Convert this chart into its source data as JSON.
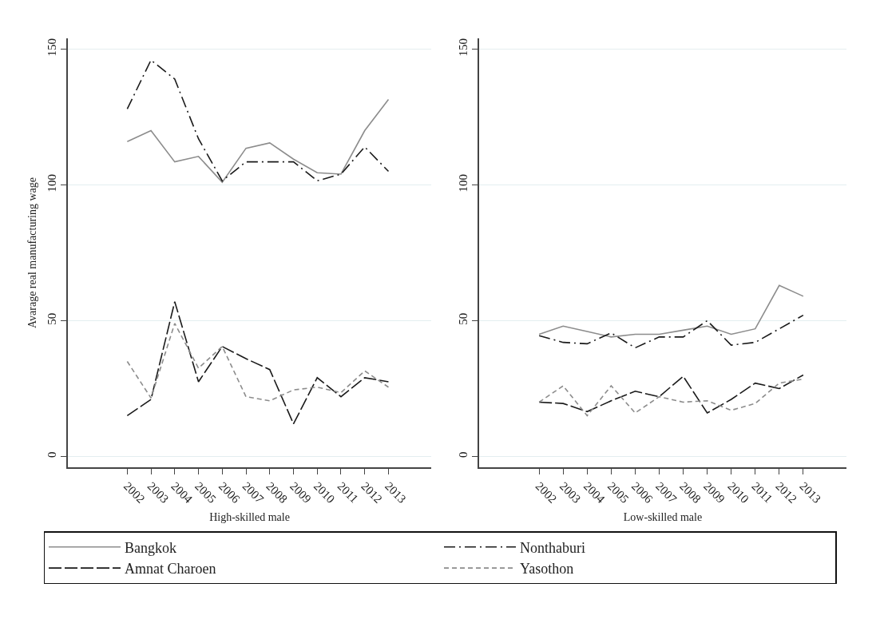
{
  "chart_data": [
    {
      "type": "line",
      "xlabel": "High-skilled male",
      "ylabel": "Avarage real manufacturing wage",
      "x": [
        2002,
        2003,
        2004,
        2005,
        2006,
        2007,
        2008,
        2009,
        2010,
        2011,
        2012,
        2013
      ],
      "xlim": [
        1999.5,
        2014.8
      ],
      "xticks": [
        2002,
        2003,
        2004,
        2005,
        2006,
        2007,
        2008,
        2009,
        2010,
        2011,
        2012,
        2013
      ],
      "ylim": [
        -4,
        154
      ],
      "yticks": [
        0,
        50,
        100,
        150
      ],
      "grid": "y",
      "legend": "bottom",
      "series": [
        {
          "name": "Bangkok",
          "color": "#8c8c8c",
          "line_style": "solid",
          "values": [
            116,
            120,
            108.5,
            110.5,
            101,
            113.5,
            115.5,
            109.5,
            104.5,
            104,
            120,
            131.5
          ]
        },
        {
          "name": "Nonthaburi",
          "color": "#1a1a1a",
          "line_style": "dashdot",
          "values": [
            128,
            146,
            139,
            117,
            101.5,
            108.5,
            108.5,
            108.5,
            101.5,
            104,
            114,
            105
          ]
        },
        {
          "name": "Amnat Charoen",
          "color": "#1a1a1a",
          "line_style": "longdash",
          "values": [
            15,
            21,
            57,
            27.5,
            40.5,
            36,
            32,
            12,
            29,
            22,
            29,
            27.5
          ]
        },
        {
          "name": "Yasothon",
          "color": "#8c8c8c",
          "line_style": "dashed",
          "values": [
            35,
            21.5,
            49,
            32.5,
            40.5,
            22,
            20.5,
            24.5,
            25.5,
            23.5,
            31.5,
            25.5
          ]
        }
      ]
    },
    {
      "type": "line",
      "xlabel": "Low-skilled male",
      "x": [
        2002,
        2003,
        2004,
        2005,
        2006,
        2007,
        2008,
        2009,
        2010,
        2011,
        2012,
        2013
      ],
      "xlim": [
        1999.5,
        2014.8
      ],
      "xticks": [
        2002,
        2003,
        2004,
        2005,
        2006,
        2007,
        2008,
        2009,
        2010,
        2011,
        2012,
        2013
      ],
      "ylim": [
        -4,
        154
      ],
      "yticks": [
        0,
        50,
        100,
        150
      ],
      "grid": "y",
      "series": [
        {
          "color": "#8c8c8c",
          "line_style": "solid",
          "values": [
            45,
            48,
            46,
            44,
            45,
            45,
            46.5,
            48,
            45,
            47,
            63,
            59
          ]
        },
        {
          "color": "#1a1a1a",
          "line_style": "dashdot",
          "values": [
            44.5,
            42,
            41.5,
            45.5,
            40,
            44,
            44,
            50,
            41,
            42,
            47,
            52
          ]
        },
        {
          "color": "#1a1a1a",
          "line_style": "longdash",
          "values": [
            20,
            19.5,
            16.5,
            20.5,
            24,
            22,
            29.5,
            16,
            21,
            27,
            25,
            30
          ]
        },
        {
          "color": "#8c8c8c",
          "line_style": "dashed",
          "values": [
            20,
            26,
            15,
            26,
            16,
            22,
            20,
            20.5,
            17,
            19.5,
            27,
            28.5
          ]
        }
      ]
    }
  ]
}
